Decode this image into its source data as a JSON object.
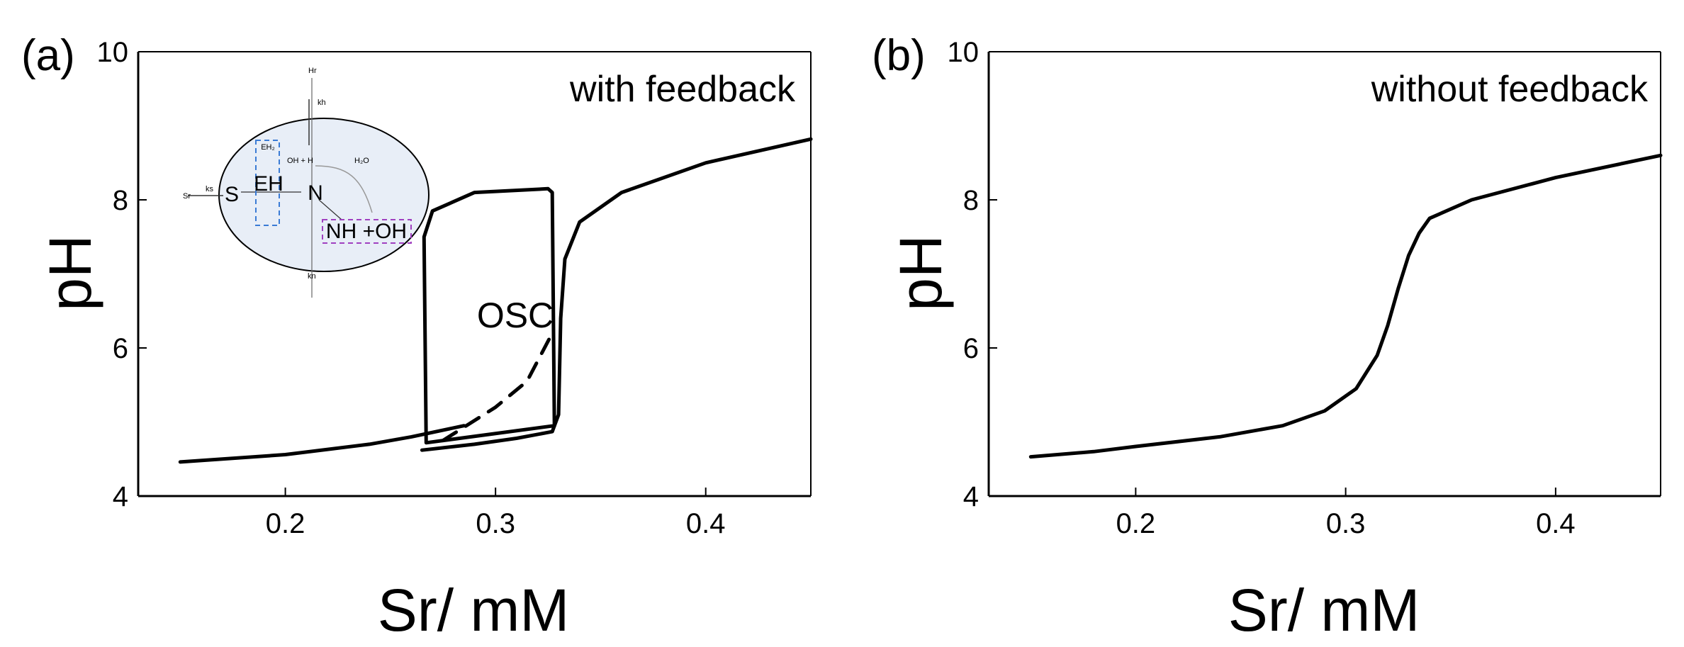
{
  "chart_data": [
    {
      "panel": "(a)",
      "type": "line",
      "xlabel": "Sr/ mM",
      "ylabel": "pH",
      "xlim": [
        0.13,
        0.45
      ],
      "ylim": [
        4,
        10
      ],
      "xticks": [
        "0.2",
        "0.3",
        "0.4"
      ],
      "yticks": [
        "4",
        "6",
        "8",
        "10"
      ],
      "grid": false,
      "annotation": "with feedback",
      "region_label": "OSC",
      "series": [
        {
          "style": "solid",
          "points": [
            [
              0.15,
              4.46
            ],
            [
              0.2,
              4.56
            ],
            [
              0.24,
              4.7
            ],
            [
              0.26,
              4.8
            ],
            [
              0.285,
              4.95
            ]
          ]
        },
        {
          "style": "solid",
          "points": [
            [
              0.265,
              4.62
            ],
            [
              0.29,
              4.7
            ],
            [
              0.31,
              4.78
            ],
            [
              0.327,
              4.87
            ],
            [
              0.33,
              5.1
            ],
            [
              0.331,
              6.4
            ],
            [
              0.333,
              7.2
            ],
            [
              0.34,
              7.7
            ],
            [
              0.36,
              8.1
            ],
            [
              0.4,
              8.5
            ],
            [
              0.45,
              8.82
            ]
          ]
        },
        {
          "style": "dashed",
          "points": [
            [
              0.275,
              4.75
            ],
            [
              0.3,
              5.2
            ],
            [
              0.315,
              5.55
            ],
            [
              0.327,
              6.2
            ]
          ]
        },
        {
          "style": "solid",
          "closed": true,
          "points": [
            [
              0.267,
              4.72
            ],
            [
              0.266,
              7.5
            ],
            [
              0.27,
              7.85
            ],
            [
              0.29,
              8.1
            ],
            [
              0.325,
              8.15
            ],
            [
              0.327,
              8.1
            ],
            [
              0.328,
              4.95
            ]
          ]
        }
      ],
      "inset": {
        "nodes": [
          "S",
          "EH",
          "N",
          "NH +OH",
          "EH₂",
          "OH + H",
          "H₂O"
        ],
        "edge_labels": [
          "Sr",
          "ks",
          "Hr",
          "kh",
          "kn"
        ]
      }
    },
    {
      "panel": "(b)",
      "type": "line",
      "xlabel": "Sr/ mM",
      "ylabel": "pH",
      "xlim": [
        0.13,
        0.45
      ],
      "ylim": [
        4,
        10
      ],
      "xticks": [
        "0.2",
        "0.3",
        "0.4"
      ],
      "yticks": [
        "4",
        "6",
        "8",
        "10"
      ],
      "grid": false,
      "annotation": "without feedback",
      "series": [
        {
          "style": "solid",
          "points": [
            [
              0.15,
              4.53
            ],
            [
              0.18,
              4.6
            ],
            [
              0.2,
              4.67
            ],
            [
              0.24,
              4.8
            ],
            [
              0.27,
              4.95
            ],
            [
              0.29,
              5.15
            ],
            [
              0.305,
              5.45
            ],
            [
              0.315,
              5.9
            ],
            [
              0.32,
              6.3
            ],
            [
              0.325,
              6.8
            ],
            [
              0.33,
              7.25
            ],
            [
              0.335,
              7.55
            ],
            [
              0.34,
              7.75
            ],
            [
              0.36,
              8.0
            ],
            [
              0.4,
              8.3
            ],
            [
              0.45,
              8.6
            ]
          ]
        }
      ]
    }
  ]
}
